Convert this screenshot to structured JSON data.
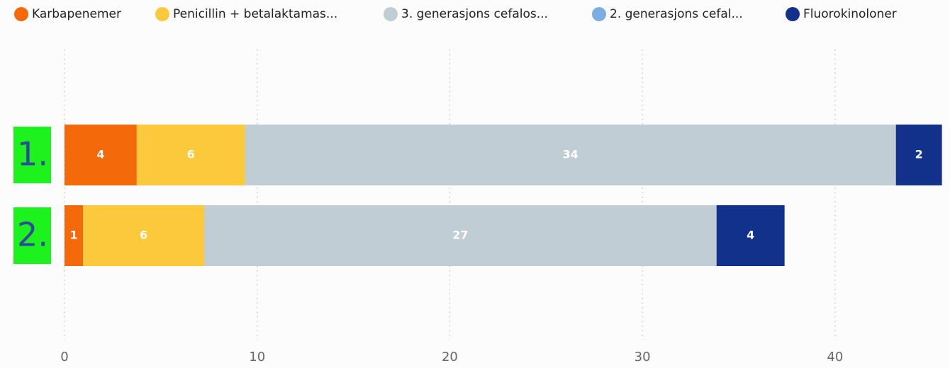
{
  "chart_data": {
    "type": "stacked_barh",
    "categories": [
      "1.",
      "2."
    ],
    "series": [
      {
        "name": "Karbapenemer",
        "color": "#f46a0b",
        "values": [
          3.75,
          0.96
        ],
        "value_labels": [
          "4",
          "1"
        ]
      },
      {
        "name": "Penicillin + betalaktamas...",
        "color": "#fbc93b",
        "values": [
          5.62,
          6.29
        ],
        "value_labels": [
          "6",
          "6"
        ]
      },
      {
        "name": "3. generasjons cefalos...",
        "color": "#c1cdd5",
        "values": [
          33.79,
          26.6
        ],
        "value_labels": [
          "34",
          "27"
        ]
      },
      {
        "name": "2. generasjons cefal...",
        "color": "#7aaee3",
        "values": [
          null,
          null
        ]
      },
      {
        "name": "Fluorokinoloner",
        "color": "#12318a",
        "values": [
          2.39,
          3.53
        ],
        "value_labels": [
          "2",
          "4"
        ]
      }
    ],
    "xlim": [
      0,
      45.6
    ],
    "xticks": [
      0,
      10,
      20,
      30,
      40
    ],
    "grid": true
  }
}
